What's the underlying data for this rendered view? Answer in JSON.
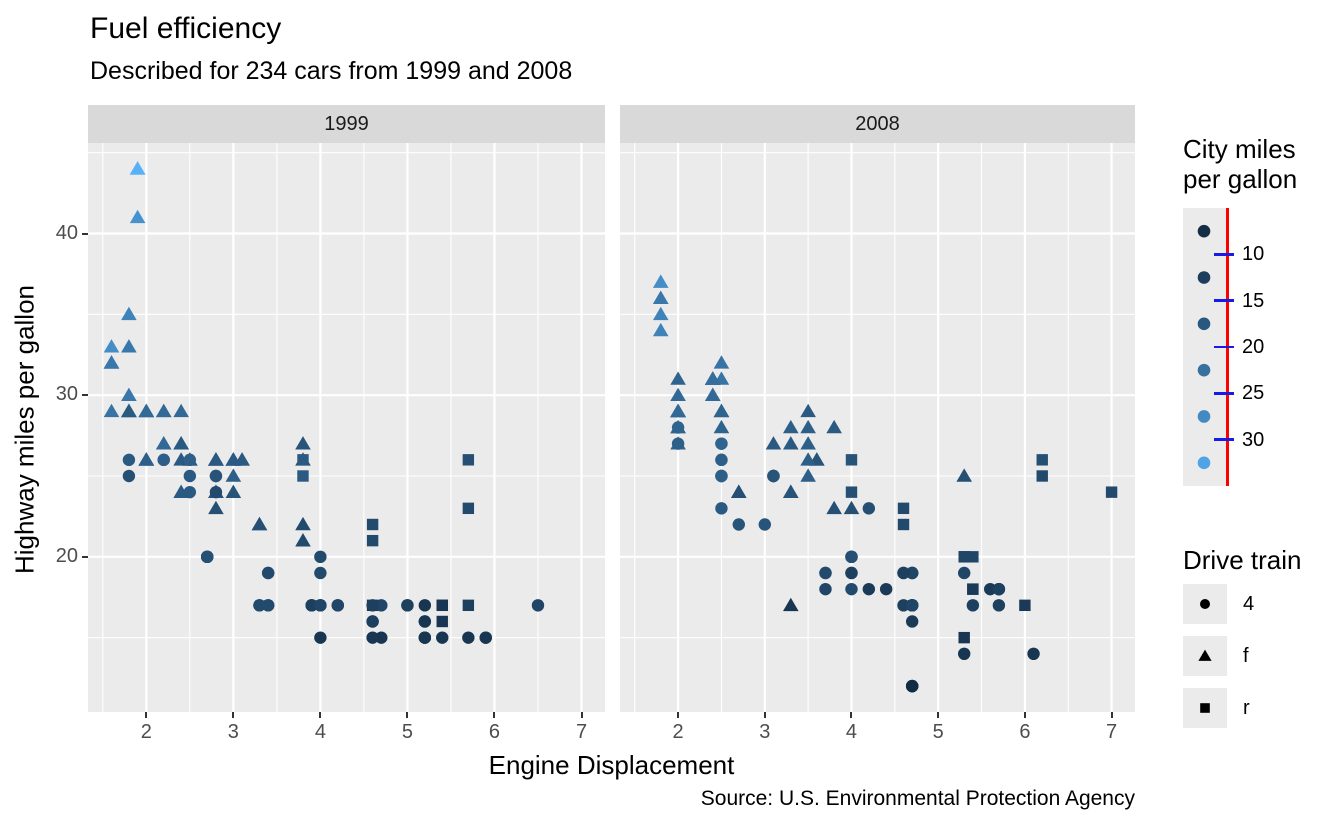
{
  "title": "Fuel efficiency",
  "subtitle": "Described for 234 cars from 1999 and 2008",
  "caption": "Source: U.S. Environmental Protection Agency",
  "facets": [
    {
      "label": "1999"
    },
    {
      "label": "2008"
    }
  ],
  "x_axis": {
    "title": "Engine Displacement",
    "ticks": [
      2,
      3,
      4,
      5,
      6,
      7
    ],
    "minor": [
      1.5,
      2.5,
      3.5,
      4.5,
      5.5,
      6.5
    ],
    "domain": [
      1.33,
      7.27
    ]
  },
  "y_axis": {
    "title": "Highway miles per gallon",
    "ticks": [
      20,
      30,
      40
    ],
    "minor": [
      15,
      25,
      35,
      45
    ],
    "domain": [
      10.4,
      45.6
    ]
  },
  "colors": {
    "panel_bg": "#EBEBEB",
    "strip_bg": "#D9D9D9",
    "grid": "#FFFFFF",
    "tick_mark": "#333333",
    "tick_label": "#4D4D4D",
    "text": "#000000",
    "strip_text": "#1A1A1A",
    "legend_key_bg": "#EBEBEB",
    "gradient_low": "#132B43",
    "gradient_high": "#56B1F7",
    "legend_axis_line": "#FF0000",
    "legend_axis_tick": "#1A1AE6",
    "shape_legend_glyph": "#000000"
  },
  "color_legend": {
    "title": "City miles per gallon",
    "title_line1": "City miles",
    "title_line2": "per gallon",
    "labels": [
      "10",
      "15",
      "20",
      "25",
      "30"
    ],
    "bin_midpoints": [
      9.5,
      12.5,
      17.5,
      22.5,
      27.5,
      32.5
    ],
    "domain": [
      9,
      35
    ]
  },
  "shape_legend": {
    "title": "Drive train",
    "items": [
      {
        "shape": "circle",
        "label": "4"
      },
      {
        "shape": "triangle",
        "label": "f"
      },
      {
        "shape": "square",
        "label": "r"
      }
    ]
  },
  "chart_data": {
    "type": "scatter",
    "x_var": "Engine Displacement (displ)",
    "y_var": "Highway miles per gallon (hwy)",
    "color_var": "City miles per gallon (cty)",
    "shape_var": "Drive train (drv)",
    "facet_var": "year",
    "point_format": [
      "displ",
      "hwy",
      "cty",
      "drv"
    ],
    "points_1999": [
      [
        1.9,
        44,
        33,
        "f"
      ],
      [
        1.9,
        44,
        35,
        "f"
      ],
      [
        1.9,
        41,
        29,
        "f"
      ],
      [
        1.6,
        33,
        28,
        "f"
      ],
      [
        1.6,
        32,
        24,
        "f"
      ],
      [
        1.6,
        32,
        25,
        "f"
      ],
      [
        1.6,
        32,
        24,
        "f"
      ],
      [
        1.6,
        29,
        23,
        "f"
      ],
      [
        1.8,
        35,
        26,
        "f"
      ],
      [
        1.8,
        33,
        24,
        "f"
      ],
      [
        1.8,
        30,
        24,
        "f"
      ],
      [
        1.8,
        29,
        18,
        "f"
      ],
      [
        1.8,
        29,
        21,
        "f"
      ],
      [
        1.8,
        29,
        21,
        "f"
      ],
      [
        1.8,
        29,
        18,
        "f"
      ],
      [
        2,
        29,
        21,
        "f"
      ],
      [
        2,
        29,
        19,
        "f"
      ],
      [
        2,
        29,
        21,
        "f"
      ],
      [
        2,
        29,
        21,
        "f"
      ],
      [
        2.2,
        29,
        21,
        "f"
      ],
      [
        2.2,
        29,
        21,
        "f"
      ],
      [
        2.4,
        29,
        21,
        "f"
      ],
      [
        2,
        26,
        19,
        "f"
      ],
      [
        2,
        26,
        19,
        "f"
      ],
      [
        2,
        26,
        19,
        "f"
      ],
      [
        2,
        26,
        19,
        "f"
      ],
      [
        2.2,
        27,
        21,
        "f"
      ],
      [
        2.2,
        27,
        21,
        "f"
      ],
      [
        2.4,
        27,
        19,
        "f"
      ],
      [
        2.4,
        27,
        19,
        "f"
      ],
      [
        2.4,
        27,
        18,
        "f"
      ],
      [
        2.4,
        26,
        18,
        "f"
      ],
      [
        2.5,
        26,
        18,
        "f"
      ],
      [
        2.5,
        26,
        18,
        "f"
      ],
      [
        2.8,
        26,
        16,
        "f"
      ],
      [
        2.8,
        26,
        18,
        "f"
      ],
      [
        2.8,
        26,
        16,
        "f"
      ],
      [
        2.8,
        26,
        18,
        "f"
      ],
      [
        3,
        26,
        18,
        "f"
      ],
      [
        3,
        25,
        19,
        "f"
      ],
      [
        3,
        26,
        18,
        "f"
      ],
      [
        3,
        26,
        18,
        "f"
      ],
      [
        3,
        26,
        18,
        "f"
      ],
      [
        3.1,
        26,
        18,
        "f"
      ],
      [
        3.1,
        26,
        18,
        "f"
      ],
      [
        3.8,
        26,
        16,
        "f"
      ],
      [
        3.8,
        27,
        17,
        "f"
      ],
      [
        2.8,
        24,
        17,
        "f"
      ],
      [
        2.8,
        24,
        17,
        "f"
      ],
      [
        2.8,
        23,
        16,
        "f"
      ],
      [
        2.4,
        24,
        18,
        "f"
      ],
      [
        3,
        24,
        17,
        "f"
      ],
      [
        3.3,
        22,
        16,
        "f"
      ],
      [
        3.3,
        22,
        16,
        "f"
      ],
      [
        3.8,
        22,
        15,
        "f"
      ],
      [
        3.8,
        21,
        15,
        "f"
      ],
      [
        3.8,
        26,
        18,
        "r"
      ],
      [
        3.8,
        25,
        18,
        "r"
      ],
      [
        4.6,
        21,
        15,
        "r"
      ],
      [
        4.6,
        22,
        15,
        "r"
      ],
      [
        5.7,
        26,
        16,
        "r"
      ],
      [
        5.7,
        23,
        15,
        "r"
      ],
      [
        5.7,
        17,
        13,
        "r"
      ],
      [
        4.6,
        17,
        11,
        "r"
      ],
      [
        5.4,
        17,
        11,
        "r"
      ],
      [
        5.4,
        17,
        11,
        "r"
      ],
      [
        5.4,
        16,
        11,
        "r"
      ],
      [
        1.8,
        26,
        18,
        "4"
      ],
      [
        1.8,
        25,
        16,
        "4"
      ],
      [
        2.8,
        25,
        15,
        "4"
      ],
      [
        2.8,
        25,
        17,
        "4"
      ],
      [
        2.8,
        24,
        15,
        "4"
      ],
      [
        2.5,
        25,
        18,
        "4"
      ],
      [
        2.5,
        24,
        18,
        "4"
      ],
      [
        2.2,
        26,
        21,
        "4"
      ],
      [
        2.2,
        26,
        19,
        "4"
      ],
      [
        2.5,
        26,
        19,
        "4"
      ],
      [
        2.7,
        20,
        15,
        "4"
      ],
      [
        2.7,
        20,
        16,
        "4"
      ],
      [
        3.4,
        19,
        15,
        "4"
      ],
      [
        3.4,
        17,
        15,
        "4"
      ],
      [
        2.7,
        20,
        15,
        "4"
      ],
      [
        2.7,
        20,
        16,
        "4"
      ],
      [
        3.4,
        17,
        15,
        "4"
      ],
      [
        3.4,
        19,
        15,
        "4"
      ],
      [
        4.7,
        15,
        11,
        "4"
      ],
      [
        3.3,
        17,
        14,
        "4"
      ],
      [
        3.3,
        17,
        15,
        "4"
      ],
      [
        4,
        20,
        15,
        "4"
      ],
      [
        4.7,
        17,
        14,
        "4"
      ],
      [
        4,
        15,
        11,
        "4"
      ],
      [
        4.6,
        15,
        11,
        "4"
      ],
      [
        5.7,
        15,
        11,
        "4"
      ],
      [
        6.5,
        17,
        14,
        "4"
      ],
      [
        3.9,
        17,
        13,
        "4"
      ],
      [
        3.9,
        17,
        14,
        "4"
      ],
      [
        5.2,
        17,
        11,
        "4"
      ],
      [
        5.2,
        15,
        11,
        "4"
      ],
      [
        3.9,
        17,
        13,
        "4"
      ],
      [
        5.2,
        16,
        11,
        "4"
      ],
      [
        5.9,
        15,
        11,
        "4"
      ],
      [
        5.2,
        15,
        11,
        "4"
      ],
      [
        5.2,
        16,
        11,
        "4"
      ],
      [
        5.9,
        15,
        11,
        "4"
      ],
      [
        4,
        17,
        14,
        "4"
      ],
      [
        4,
        19,
        15,
        "4"
      ],
      [
        4,
        17,
        14,
        "4"
      ],
      [
        5,
        17,
        13,
        "4"
      ],
      [
        4.2,
        17,
        14,
        "4"
      ],
      [
        4.2,
        17,
        14,
        "4"
      ],
      [
        4.6,
        16,
        13,
        "4"
      ],
      [
        4.6,
        16,
        13,
        "4"
      ],
      [
        4.6,
        17,
        13,
        "4"
      ],
      [
        5.4,
        15,
        11,
        "4"
      ],
      [
        4,
        17,
        14,
        "4"
      ],
      [
        5,
        17,
        13,
        "4"
      ],
      [
        5.2,
        15,
        11,
        "4"
      ]
    ],
    "points_2008": [
      [
        1.8,
        34,
        26,
        "f"
      ],
      [
        1.8,
        36,
        25,
        "f"
      ],
      [
        1.8,
        36,
        24,
        "f"
      ],
      [
        2,
        29,
        21,
        "f"
      ],
      [
        1.8,
        37,
        28,
        "f"
      ],
      [
        1.8,
        35,
        26,
        "f"
      ],
      [
        2,
        31,
        20,
        "f"
      ],
      [
        2,
        30,
        21,
        "f"
      ],
      [
        3.1,
        27,
        18,
        "f"
      ],
      [
        2,
        29,
        22,
        "f"
      ],
      [
        2,
        29,
        21,
        "f"
      ],
      [
        2.5,
        29,
        21,
        "f"
      ],
      [
        2.5,
        29,
        21,
        "f"
      ],
      [
        2,
        29,
        21,
        "f"
      ],
      [
        2,
        29,
        22,
        "f"
      ],
      [
        2.5,
        28,
        20,
        "f"
      ],
      [
        2.5,
        29,
        20,
        "f"
      ],
      [
        2,
        28,
        19,
        "f"
      ],
      [
        2,
        29,
        21,
        "f"
      ],
      [
        3.6,
        26,
        17,
        "f"
      ],
      [
        2.4,
        30,
        22,
        "f"
      ],
      [
        3.5,
        29,
        18,
        "f"
      ],
      [
        3.6,
        26,
        17,
        "f"
      ],
      [
        2.4,
        30,
        21,
        "f"
      ],
      [
        2.4,
        31,
        21,
        "f"
      ],
      [
        3.3,
        28,
        19,
        "f"
      ],
      [
        2,
        28,
        20,
        "f"
      ],
      [
        2,
        27,
        20,
        "f"
      ],
      [
        2.7,
        24,
        17,
        "f"
      ],
      [
        2.7,
        24,
        16,
        "f"
      ],
      [
        2.5,
        31,
        23,
        "f"
      ],
      [
        2.5,
        32,
        23,
        "f"
      ],
      [
        3.5,
        27,
        19,
        "f"
      ],
      [
        3.5,
        26,
        19,
        "f"
      ],
      [
        3.5,
        25,
        19,
        "f"
      ],
      [
        2.4,
        31,
        21,
        "f"
      ],
      [
        2.4,
        31,
        21,
        "f"
      ],
      [
        3.5,
        28,
        19,
        "f"
      ],
      [
        2.4,
        31,
        21,
        "f"
      ],
      [
        2.4,
        31,
        22,
        "f"
      ],
      [
        3.3,
        27,
        18,
        "f"
      ],
      [
        3.3,
        24,
        17,
        "f"
      ],
      [
        3.3,
        24,
        17,
        "f"
      ],
      [
        3.3,
        17,
        11,
        "f"
      ],
      [
        3.8,
        23,
        16,
        "f"
      ],
      [
        4,
        23,
        16,
        "f"
      ],
      [
        3.8,
        28,
        18,
        "f"
      ],
      [
        5.3,
        25,
        16,
        "f"
      ],
      [
        6.2,
        26,
        16,
        "r"
      ],
      [
        6.2,
        25,
        15,
        "r"
      ],
      [
        7,
        24,
        15,
        "r"
      ],
      [
        5.3,
        20,
        14,
        "r"
      ],
      [
        5.3,
        15,
        11,
        "r"
      ],
      [
        5.3,
        20,
        14,
        "r"
      ],
      [
        6,
        17,
        12,
        "r"
      ],
      [
        4,
        26,
        17,
        "r"
      ],
      [
        4,
        24,
        16,
        "r"
      ],
      [
        4.6,
        23,
        15,
        "r"
      ],
      [
        4.6,
        22,
        15,
        "r"
      ],
      [
        5.4,
        20,
        14,
        "r"
      ],
      [
        5.4,
        18,
        12,
        "r"
      ],
      [
        5.4,
        18,
        12,
        "r"
      ],
      [
        2,
        28,
        20,
        "4"
      ],
      [
        2,
        27,
        19,
        "4"
      ],
      [
        3.1,
        25,
        17,
        "4"
      ],
      [
        3.1,
        25,
        15,
        "4"
      ],
      [
        3.1,
        25,
        17,
        "4"
      ],
      [
        4.2,
        23,
        16,
        "4"
      ],
      [
        2.5,
        27,
        20,
        "4"
      ],
      [
        2.5,
        25,
        19,
        "4"
      ],
      [
        2.5,
        26,
        20,
        "4"
      ],
      [
        2.5,
        23,
        18,
        "4"
      ],
      [
        2.5,
        25,
        20,
        "4"
      ],
      [
        2.5,
        27,
        20,
        "4"
      ],
      [
        2.5,
        25,
        19,
        "4"
      ],
      [
        2.5,
        26,
        19,
        "4"
      ],
      [
        5.3,
        19,
        14,
        "4"
      ],
      [
        5.3,
        14,
        11,
        "4"
      ],
      [
        3,
        22,
        17,
        "4"
      ],
      [
        3.7,
        19,
        15,
        "4"
      ],
      [
        4.7,
        12,
        9,
        "4"
      ],
      [
        4.7,
        19,
        14,
        "4"
      ],
      [
        5.7,
        18,
        13,
        "4"
      ],
      [
        6.1,
        14,
        11,
        "4"
      ],
      [
        3.7,
        19,
        15,
        "4"
      ],
      [
        3.7,
        18,
        14,
        "4"
      ],
      [
        4.7,
        19,
        14,
        "4"
      ],
      [
        4.7,
        19,
        14,
        "4"
      ],
      [
        4.7,
        12,
        9,
        "4"
      ],
      [
        4.7,
        17,
        13,
        "4"
      ],
      [
        4.7,
        12,
        9,
        "4"
      ],
      [
        4.7,
        17,
        13,
        "4"
      ],
      [
        5.7,
        18,
        13,
        "4"
      ],
      [
        4.7,
        17,
        13,
        "4"
      ],
      [
        4.7,
        16,
        12,
        "4"
      ],
      [
        4.7,
        17,
        13,
        "4"
      ],
      [
        4.7,
        17,
        13,
        "4"
      ],
      [
        4.7,
        12,
        9,
        "4"
      ],
      [
        5.7,
        17,
        13,
        "4"
      ],
      [
        4,
        19,
        13,
        "4"
      ],
      [
        4.6,
        19,
        13,
        "4"
      ],
      [
        4,
        19,
        13,
        "4"
      ],
      [
        4.6,
        19,
        13,
        "4"
      ],
      [
        4.6,
        17,
        13,
        "4"
      ],
      [
        5.4,
        17,
        13,
        "4"
      ],
      [
        4.2,
        18,
        12,
        "4"
      ],
      [
        4.4,
        18,
        12,
        "4"
      ],
      [
        4,
        20,
        14,
        "4"
      ],
      [
        5.6,
        18,
        12,
        "4"
      ],
      [
        4,
        20,
        16,
        "4"
      ],
      [
        4.7,
        17,
        14,
        "4"
      ],
      [
        2.7,
        22,
        17,
        "4"
      ],
      [
        4,
        20,
        16,
        "4"
      ],
      [
        4,
        18,
        15,
        "4"
      ],
      [
        4.7,
        17,
        14,
        "4"
      ],
      [
        5.7,
        18,
        13,
        "4"
      ],
      [
        5.7,
        18,
        13,
        "4"
      ]
    ]
  }
}
